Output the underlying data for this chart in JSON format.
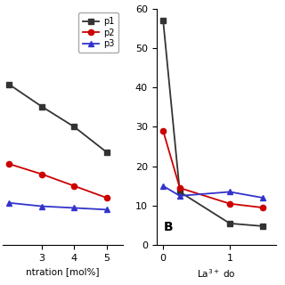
{
  "left": {
    "x": [
      2,
      3,
      4,
      5
    ],
    "p1": [
      9.5,
      8.2,
      7.0,
      5.5
    ],
    "p2": [
      4.8,
      4.2,
      3.5,
      2.8
    ],
    "p3": [
      2.5,
      2.3,
      2.2,
      2.1
    ],
    "xlabel": "ntration [mol%]",
    "xticks": [
      3,
      4,
      5
    ],
    "xlim": [
      1.8,
      5.5
    ],
    "ylim": [
      0,
      14
    ],
    "yticks": []
  },
  "right": {
    "x": [
      0,
      0.25,
      1,
      1.5
    ],
    "p1": [
      57.0,
      13.5,
      5.5,
      4.8
    ],
    "p2": [
      29.0,
      14.5,
      10.5,
      9.5
    ],
    "p3": [
      15.0,
      12.5,
      13.5,
      12.0
    ],
    "xlabel": "La$^{3+}$ do",
    "xticks": [
      0,
      1
    ],
    "xlim": [
      -0.1,
      1.7
    ],
    "ylim": [
      0,
      60
    ],
    "yticks": [
      0,
      10,
      20,
      30,
      40,
      50,
      60
    ],
    "label": "B"
  },
  "legend": {
    "p1_label": "p1",
    "p2_label": "p2",
    "p3_label": "p3",
    "p1_color": "#333333",
    "p2_color": "#cc0000",
    "p3_color": "#3333cc",
    "p1_marker": "s",
    "p2_marker": "o",
    "p3_marker": "^"
  },
  "fig_width": 3.2,
  "fig_height": 3.2,
  "dpi": 100
}
